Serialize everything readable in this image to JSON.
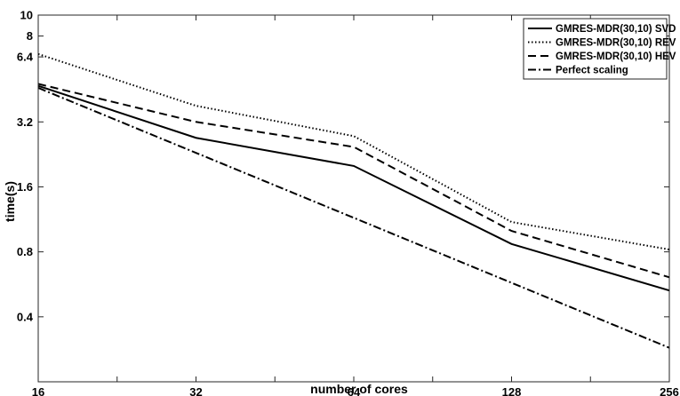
{
  "chart_data": {
    "type": "line",
    "xlabel": "number of cores",
    "ylabel": "time(s)",
    "x_scale": "log2",
    "y_scale": "log",
    "xlim": [
      16,
      256
    ],
    "ylim": [
      0.2,
      10
    ],
    "x_ticks": [
      16,
      32,
      64,
      128,
      256
    ],
    "y_ticks": [
      0.4,
      0.8,
      1.6,
      3.2,
      6.4,
      8,
      10
    ],
    "grid": false,
    "legend_position": "top-right",
    "x": [
      16,
      32,
      64,
      128,
      256
    ],
    "series": [
      {
        "name": "GMRES-MDR(30,10) SVD",
        "style": "solid",
        "values": [
          4.7,
          2.7,
          2.0,
          0.87,
          0.53
        ]
      },
      {
        "name": "GMRES-MDR(30,10) REV",
        "style": "dotted",
        "values": [
          6.6,
          3.8,
          2.75,
          1.1,
          0.82
        ]
      },
      {
        "name": "GMRES-MDR(30,10) HEV",
        "style": "dashed",
        "values": [
          4.8,
          3.2,
          2.45,
          1.0,
          0.61
        ]
      },
      {
        "name": "Perfect scaling",
        "style": "dashdot",
        "values": [
          4.6,
          2.3,
          1.15,
          0.575,
          0.2875
        ]
      }
    ]
  }
}
